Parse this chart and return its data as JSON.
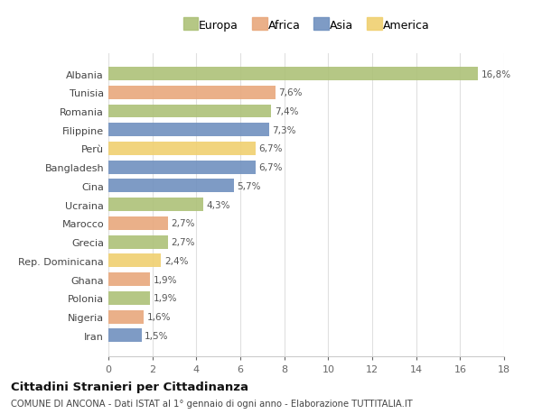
{
  "countries": [
    "Albania",
    "Tunisia",
    "Romania",
    "Filippine",
    "Perù",
    "Bangladesh",
    "Cina",
    "Ucraina",
    "Marocco",
    "Grecia",
    "Rep. Dominicana",
    "Ghana",
    "Polonia",
    "Nigeria",
    "Iran"
  ],
  "values": [
    16.8,
    7.6,
    7.4,
    7.3,
    6.7,
    6.7,
    5.7,
    4.3,
    2.7,
    2.7,
    2.4,
    1.9,
    1.9,
    1.6,
    1.5
  ],
  "labels": [
    "16,8%",
    "7,6%",
    "7,4%",
    "7,3%",
    "6,7%",
    "6,7%",
    "5,7%",
    "4,3%",
    "2,7%",
    "2,7%",
    "2,4%",
    "1,9%",
    "1,9%",
    "1,6%",
    "1,5%"
  ],
  "continents": [
    "Europa",
    "Africa",
    "Europa",
    "Asia",
    "America",
    "Asia",
    "Asia",
    "Europa",
    "Africa",
    "Europa",
    "America",
    "Africa",
    "Europa",
    "Africa",
    "Asia"
  ],
  "colors": {
    "Europa": "#adc178",
    "Africa": "#e8a87c",
    "Asia": "#7090bf",
    "America": "#f0d070"
  },
  "legend_order": [
    "Europa",
    "Africa",
    "Asia",
    "America"
  ],
  "title": "Cittadini Stranieri per Cittadinanza",
  "subtitle": "COMUNE DI ANCONA - Dati ISTAT al 1° gennaio di ogni anno - Elaborazione TUTTITALIA.IT",
  "xlim": [
    0,
    18
  ],
  "xticks": [
    0,
    2,
    4,
    6,
    8,
    10,
    12,
    14,
    16,
    18
  ],
  "background_color": "#ffffff",
  "grid_color": "#e0e0e0"
}
